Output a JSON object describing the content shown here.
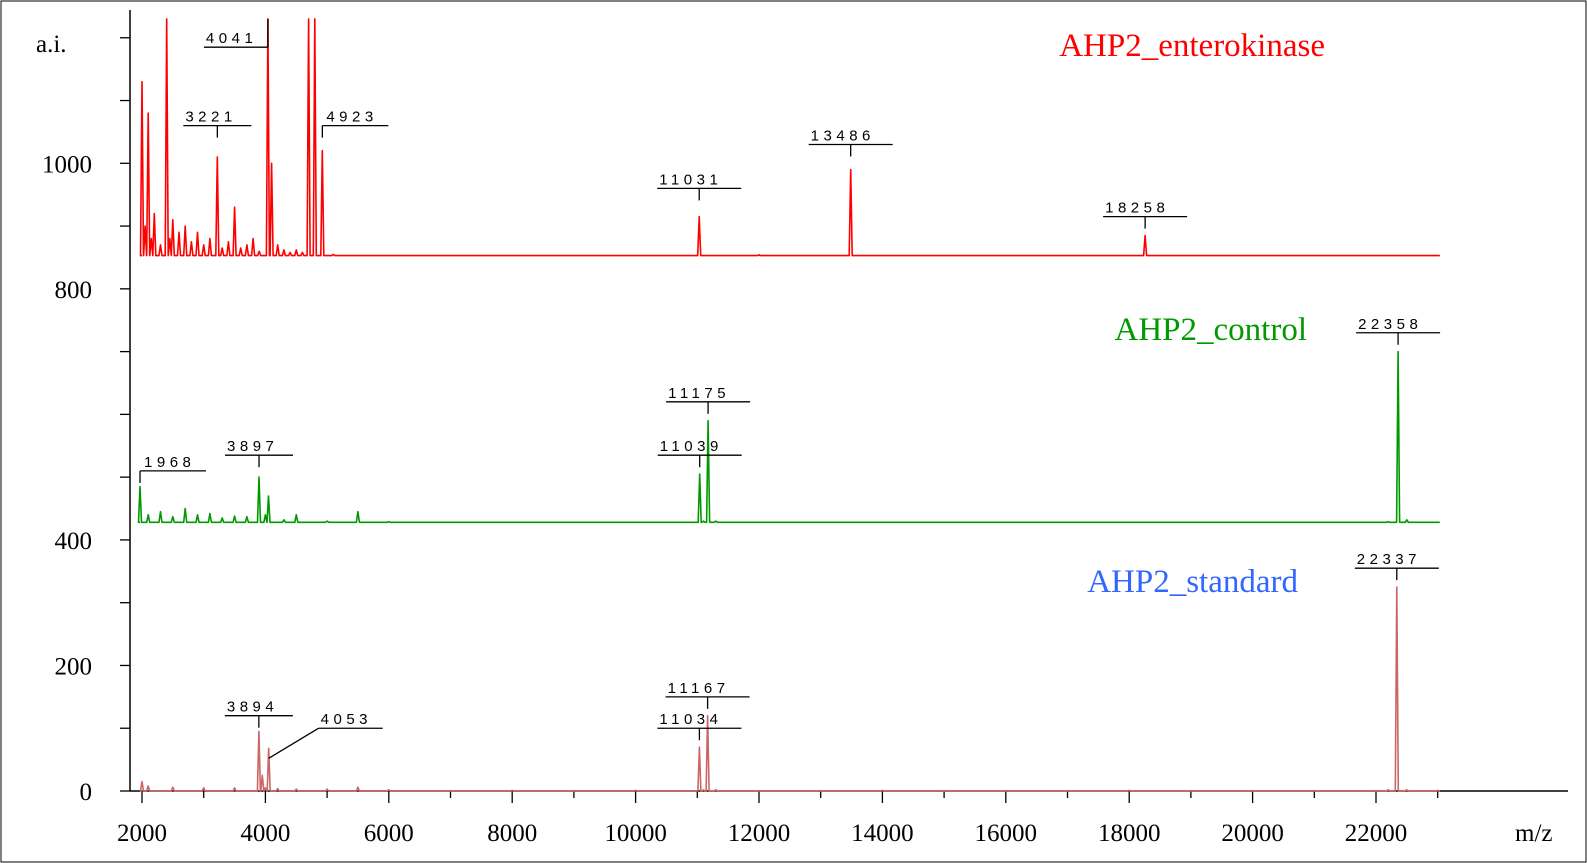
{
  "chart_data": {
    "type": "line",
    "xlabel": "m/z",
    "ylabel": "a.i.",
    "xlim": [
      1950,
      23000
    ],
    "ylim": [
      0,
      1230
    ],
    "x_ticks": [
      2000,
      4000,
      6000,
      8000,
      10000,
      12000,
      14000,
      16000,
      18000,
      20000,
      22000
    ],
    "y_ticks": [
      0,
      200,
      400,
      800,
      1000
    ],
    "grid": false,
    "series": [
      {
        "name": "AHP2_enterokinase",
        "color": "#ff0000",
        "baseline": 853,
        "x": [
          2000,
          2050,
          2100,
          2150,
          2200,
          2300,
          2400,
          2450,
          2500,
          2600,
          2700,
          2800,
          2900,
          3000,
          3100,
          3221,
          3300,
          3400,
          3500,
          3600,
          3700,
          3800,
          3900,
          4041,
          4100,
          4200,
          4300,
          4400,
          4500,
          4600,
          4700,
          4800,
          4923,
          5100,
          6000,
          8000,
          10000,
          11031,
          12000,
          13486,
          16000,
          18258,
          20000,
          23000
        ],
        "y": [
          1130,
          900,
          1080,
          880,
          920,
          870,
          1230,
          880,
          910,
          890,
          900,
          875,
          890,
          870,
          880,
          1010,
          865,
          875,
          930,
          865,
          870,
          880,
          860,
          1230,
          1000,
          870,
          862,
          858,
          862,
          858,
          1230,
          1230,
          1020,
          855,
          853,
          853,
          853,
          915,
          854,
          990,
          853,
          885,
          853,
          853
        ]
      },
      {
        "name": "AHP2_control",
        "color": "#009900",
        "baseline": 428,
        "x": [
          1968,
          2100,
          2300,
          2500,
          2700,
          2900,
          3100,
          3300,
          3500,
          3700,
          3897,
          4000,
          4050,
          4300,
          4500,
          5000,
          5500,
          6000,
          8000,
          10000,
          11039,
          11100,
          11175,
          11300,
          13000,
          16000,
          20000,
          22200,
          22358,
          22500,
          23000
        ],
        "y": [
          485,
          440,
          445,
          437,
          450,
          440,
          442,
          435,
          438,
          437,
          500,
          440,
          470,
          432,
          440,
          430,
          445,
          429,
          428,
          428,
          505,
          430,
          590,
          430,
          428,
          428,
          428,
          429,
          700,
          432,
          428
        ]
      },
      {
        "name": "AHP2_standard",
        "color": "#3366ff",
        "line_color": "#cc6666",
        "baseline": 0,
        "x": [
          2000,
          2100,
          2500,
          3000,
          3500,
          3894,
          3950,
          4000,
          4053,
          4200,
          4500,
          5000,
          5500,
          6000,
          8000,
          10000,
          11034,
          11100,
          11167,
          11300,
          14000,
          18000,
          22200,
          22337,
          22500,
          23000
        ],
        "y": [
          15,
          8,
          6,
          5,
          5,
          95,
          25,
          5,
          68,
          4,
          3,
          3,
          6,
          2,
          1,
          1,
          70,
          2,
          120,
          2,
          1,
          1,
          2,
          325,
          2,
          1
        ]
      }
    ],
    "peak_labels": [
      {
        "series": 0,
        "text": "3221",
        "x": 3221,
        "y": 1010,
        "label_y": 1060,
        "mode": "center"
      },
      {
        "series": 0,
        "text": "4041",
        "x": 4041,
        "y": 1230,
        "label_y": 1185,
        "mode": "left"
      },
      {
        "series": 0,
        "text": "4923",
        "x": 4923,
        "y": 1020,
        "label_y": 1060,
        "mode": "right"
      },
      {
        "series": 0,
        "text": "11031",
        "x": 11031,
        "y": 915,
        "label_y": 960,
        "mode": "center"
      },
      {
        "series": 0,
        "text": "13486",
        "x": 13486,
        "y": 990,
        "label_y": 1030,
        "mode": "center"
      },
      {
        "series": 0,
        "text": "18258",
        "x": 18258,
        "y": 885,
        "label_y": 915,
        "mode": "center"
      },
      {
        "series": 1,
        "text": "1968",
        "x": 1968,
        "y": 485,
        "label_y": 510,
        "mode": "right"
      },
      {
        "series": 1,
        "text": "3897",
        "x": 3897,
        "y": 500,
        "label_y": 535,
        "mode": "center"
      },
      {
        "series": 1,
        "text": "11039",
        "x": 11039,
        "y": 505,
        "label_y": 535,
        "mode": "center"
      },
      {
        "series": 1,
        "text": "11175",
        "x": 11175,
        "y": 590,
        "label_y": 620,
        "mode": "center"
      },
      {
        "series": 1,
        "text": "22358",
        "x": 22358,
        "y": 700,
        "label_y": 730,
        "mode": "center"
      },
      {
        "series": 2,
        "text": "3894",
        "x": 3894,
        "y": 95,
        "label_y": 120,
        "mode": "center"
      },
      {
        "series": 2,
        "text": "4053",
        "x": 4053,
        "y": 68,
        "label_y": 100,
        "mode": "diag"
      },
      {
        "series": 2,
        "text": "11034",
        "x": 11034,
        "y": 70,
        "label_y": 100,
        "mode": "center"
      },
      {
        "series": 2,
        "text": "11167",
        "x": 11167,
        "y": 120,
        "label_y": 150,
        "mode": "center"
      },
      {
        "series": 2,
        "text": "22337",
        "x": 22337,
        "y": 325,
        "label_y": 355,
        "mode": "center"
      }
    ]
  }
}
